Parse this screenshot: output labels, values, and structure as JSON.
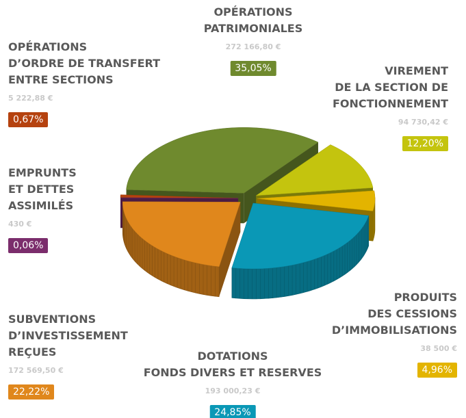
{
  "chart_data": {
    "type": "pie",
    "categories": [
      "OPÉRATIONS\nPATRIMONIALES",
      "VIREMENT\nDE LA SECTION DE\nFONCTIONNEMENT",
      "PRODUITS\nDES CESSIONS\nD’IMMOBILISATIONS",
      "DOTATIONS\nFONDS DIVERS ET RESERVES",
      "SUBVENTIONS\nD’INVESTISSEMENT\nREÇUES",
      "EMPRUNTS\nET DETTES\nASSIMILÉS",
      "OPÉRATIONS\nD’ORDRE DE TRANSFERT\nENTRE SECTIONS"
    ],
    "values": [
      35.05,
      12.2,
      4.96,
      24.85,
      22.22,
      0.06,
      0.67
    ],
    "value_labels": [
      "35,05%",
      "12,20%",
      "4,96%",
      "24,85%",
      "22,22%",
      "0,06%",
      "0,67%"
    ],
    "amounts": [
      272166.8,
      94730.42,
      38500,
      193000.23,
      172569.5,
      430,
      5222.88
    ],
    "amount_labels": [
      "272 166,80 €",
      "94 730,42 €",
      "38 500 €",
      "193 000,23 €",
      "172 569,50 €",
      "430 €",
      "5 222,88 €"
    ],
    "colors": [
      "#6f8a2e",
      "#c4c40e",
      "#e3b400",
      "#0a98b6",
      "#e0871c",
      "#7b2d6c",
      "#b5420f"
    ]
  }
}
